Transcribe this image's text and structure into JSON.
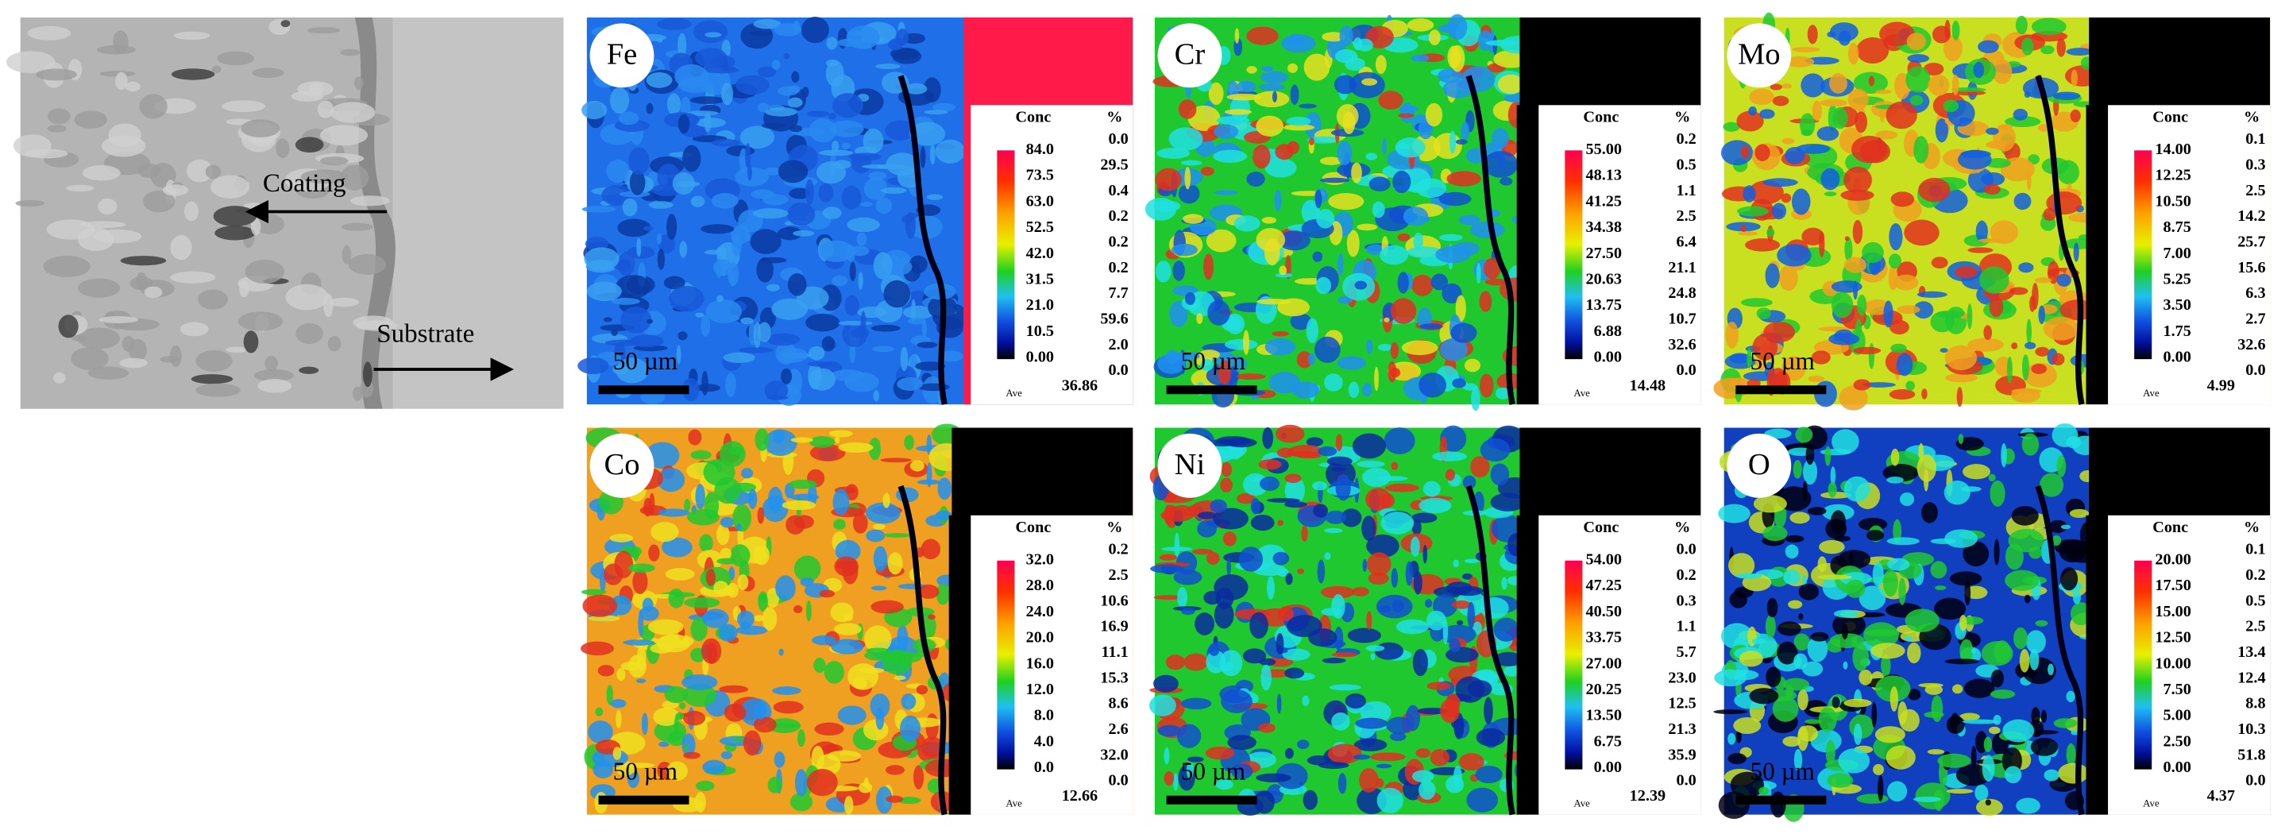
{
  "sem": {
    "coating": "Coating",
    "substrate": "Substrate"
  },
  "legend": {
    "conc": "Conc",
    "pct": "%",
    "ave": "Ave",
    "scale": "50 µm"
  },
  "panels": [
    {
      "element": "Fe",
      "conc": [
        "84.0",
        "73.5",
        "63.0",
        "52.5",
        "42.0",
        "31.5",
        "21.0",
        "10.5",
        "0.00"
      ],
      "pct": [
        "0.0",
        "29.5",
        "0.4",
        "0.2",
        "0.2",
        "0.2",
        "7.7",
        "59.6",
        "2.0",
        "0.0"
      ],
      "ave": "36.86"
    },
    {
      "element": "Cr",
      "conc": [
        "55.00",
        "48.13",
        "41.25",
        "34.38",
        "27.50",
        "20.63",
        "13.75",
        "6.88",
        "0.00"
      ],
      "pct": [
        "0.2",
        "0.5",
        "1.1",
        "2.5",
        "6.4",
        "21.1",
        "24.8",
        "10.7",
        "32.6",
        "0.0"
      ],
      "ave": "14.48"
    },
    {
      "element": "Mo",
      "conc": [
        "14.00",
        "12.25",
        "10.50",
        "8.75",
        "7.00",
        "5.25",
        "3.50",
        "1.75",
        "0.00"
      ],
      "pct": [
        "0.1",
        "0.3",
        "2.5",
        "14.2",
        "25.7",
        "15.6",
        "6.3",
        "2.7",
        "32.6",
        "0.0"
      ],
      "ave": "4.99"
    },
    {
      "element": "Co",
      "conc": [
        "32.0",
        "28.0",
        "24.0",
        "20.0",
        "16.0",
        "12.0",
        "8.0",
        "4.0",
        "0.0"
      ],
      "pct": [
        "0.2",
        "2.5",
        "10.6",
        "16.9",
        "11.1",
        "15.3",
        "8.6",
        "2.6",
        "32.0",
        "0.0"
      ],
      "ave": "12.66"
    },
    {
      "element": "Ni",
      "conc": [
        "54.00",
        "47.25",
        "40.50",
        "33.75",
        "27.00",
        "20.25",
        "13.50",
        "6.75",
        "0.00"
      ],
      "pct": [
        "0.0",
        "0.2",
        "0.3",
        "1.1",
        "5.7",
        "23.0",
        "12.5",
        "21.3",
        "35.9",
        "0.0"
      ],
      "ave": "12.39"
    },
    {
      "element": "O",
      "conc": [
        "20.00",
        "17.50",
        "15.00",
        "12.50",
        "10.00",
        "7.50",
        "5.00",
        "2.50",
        "0.00"
      ],
      "pct": [
        "0.1",
        "0.2",
        "0.5",
        "2.5",
        "13.4",
        "12.4",
        "8.8",
        "10.3",
        "51.8",
        "0.0"
      ],
      "ave": "4.37"
    }
  ]
}
